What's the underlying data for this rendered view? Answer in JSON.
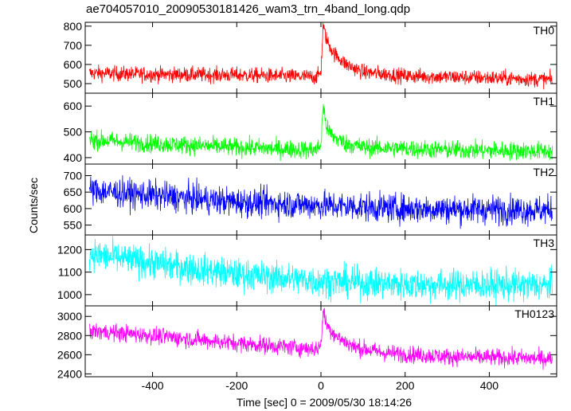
{
  "chart_data": {
    "type": "line",
    "title": "ae704057010_20090530181426_wam3_trn_4band_long.qdp",
    "ylabel": "Counts/sec",
    "xlabel": "Time [sec] 0 = 2009/05/30 18:14:26",
    "xlim": [
      -560,
      560
    ],
    "x_ticks": [
      -400,
      -200,
      0,
      200,
      400
    ],
    "panels": [
      {
        "name": "TH0",
        "color": "#ff0000",
        "ylim": [
          450,
          820
        ],
        "y_ticks": [
          500,
          600,
          700,
          800
        ],
        "baseline": [
          [
            -550,
            555
          ],
          [
            -400,
            548
          ],
          [
            -200,
            545
          ],
          [
            -10,
            535
          ],
          [
            0,
            560
          ],
          [
            5,
            800
          ],
          [
            15,
            720
          ],
          [
            30,
            660
          ],
          [
            60,
            600
          ],
          [
            100,
            560
          ],
          [
            200,
            540
          ],
          [
            400,
            530
          ],
          [
            550,
            520
          ]
        ],
        "noise": 20
      },
      {
        "name": "TH1",
        "color": "#00ff00",
        "ylim": [
          375,
          650
        ],
        "y_ticks": [
          400,
          500,
          600
        ],
        "baseline": [
          [
            -550,
            470
          ],
          [
            -400,
            455
          ],
          [
            -200,
            440
          ],
          [
            -10,
            430
          ],
          [
            0,
            450
          ],
          [
            5,
            600
          ],
          [
            15,
            510
          ],
          [
            30,
            480
          ],
          [
            60,
            455
          ],
          [
            100,
            440
          ],
          [
            300,
            430
          ],
          [
            550,
            425
          ]
        ],
        "noise": 18
      },
      {
        "name": "TH2",
        "color": "#0000ff",
        "ylim": [
          520,
          735
        ],
        "y_ticks": [
          550,
          600,
          650,
          700
        ],
        "baseline": [
          [
            -550,
            655
          ],
          [
            -400,
            640
          ],
          [
            -200,
            620
          ],
          [
            0,
            610
          ],
          [
            200,
            600
          ],
          [
            550,
            595
          ]
        ],
        "noise": 22
      },
      {
        "name": "TH3",
        "color": "#00ffff",
        "ylim": [
          950,
          1265
        ],
        "y_ticks": [
          1000,
          1100,
          1200
        ],
        "baseline": [
          [
            -550,
            1180
          ],
          [
            -400,
            1140
          ],
          [
            -200,
            1090
          ],
          [
            0,
            1060
          ],
          [
            200,
            1045
          ],
          [
            550,
            1040
          ]
        ],
        "noise": 35
      },
      {
        "name": "TH0123",
        "color": "#ff00ff",
        "ylim": [
          2370,
          3110
        ],
        "y_ticks": [
          2400,
          2600,
          2800,
          3000
        ],
        "baseline": [
          [
            -550,
            2850
          ],
          [
            -400,
            2800
          ],
          [
            -200,
            2720
          ],
          [
            -10,
            2660
          ],
          [
            0,
            2700
          ],
          [
            5,
            3050
          ],
          [
            15,
            2900
          ],
          [
            40,
            2780
          ],
          [
            80,
            2680
          ],
          [
            150,
            2620
          ],
          [
            300,
            2580
          ],
          [
            550,
            2560
          ]
        ],
        "noise": 45
      }
    ]
  }
}
